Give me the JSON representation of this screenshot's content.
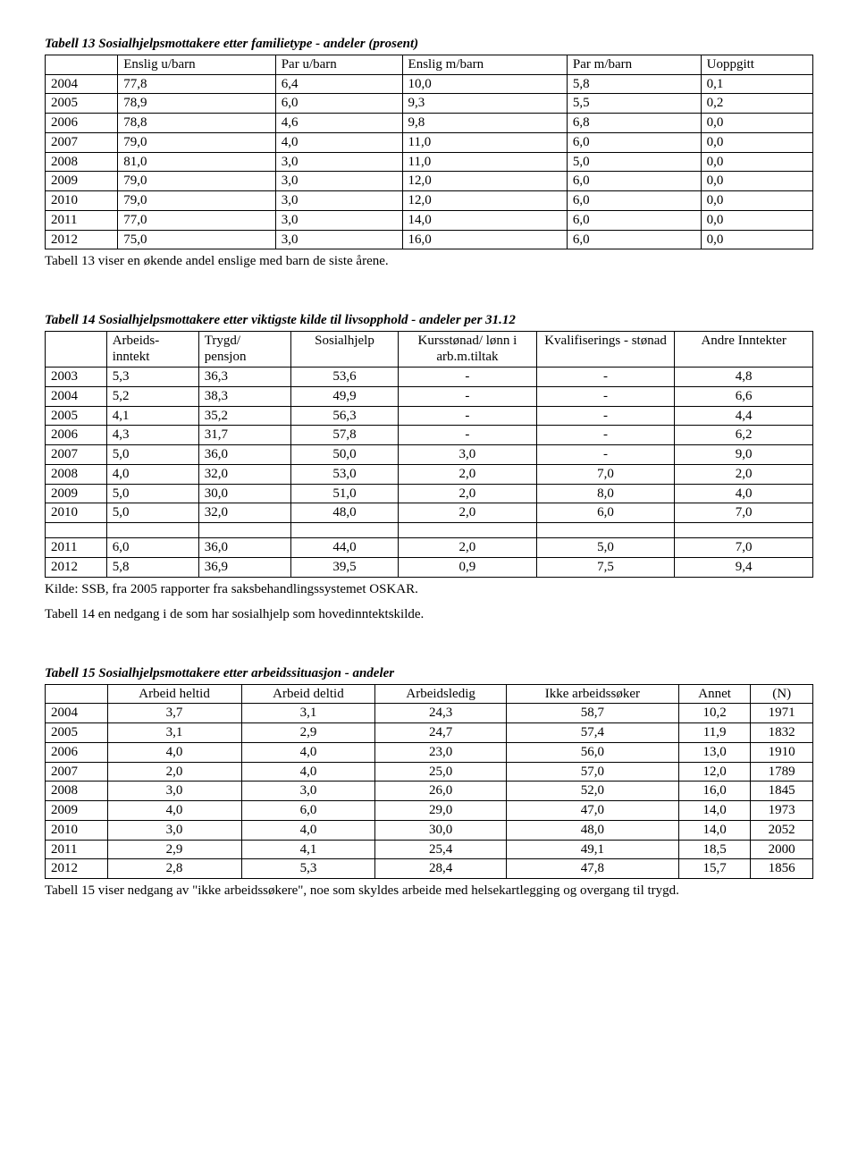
{
  "table13": {
    "title": "Tabell 13  Sosialhjelpsmottakere etter familietype - andeler (prosent)",
    "columns": [
      "",
      "Enslig u/barn",
      "Par u/barn",
      "Enslig m/barn",
      "Par m/barn",
      "Uoppgitt"
    ],
    "rows": [
      [
        "2004",
        "77,8",
        "6,4",
        "10,0",
        "5,8",
        "0,1"
      ],
      [
        "2005",
        "78,9",
        "6,0",
        "9,3",
        "5,5",
        "0,2"
      ],
      [
        "2006",
        "78,8",
        "4,6",
        "9,8",
        "6,8",
        "0,0"
      ],
      [
        "2007",
        "79,0",
        "4,0",
        "11,0",
        "6,0",
        "0,0"
      ],
      [
        "2008",
        "81,0",
        "3,0",
        "11,0",
        "5,0",
        "0,0"
      ],
      [
        "2009",
        "79,0",
        "3,0",
        "12,0",
        "6,0",
        "0,0"
      ],
      [
        "2010",
        "79,0",
        "3,0",
        "12,0",
        "6,0",
        "0,0"
      ],
      [
        "2011",
        "77,0",
        "3,0",
        "14,0",
        "6,0",
        "0,0"
      ],
      [
        "2012",
        "75,0",
        "3,0",
        "16,0",
        "6,0",
        "0,0"
      ]
    ],
    "caption": "Tabell 13 viser en økende andel enslige med barn de siste årene."
  },
  "table14": {
    "title": "Tabell 14 Sosialhjelpsmottakere etter viktigste kilde til livsopphold - andeler per 31.12",
    "columns": [
      "",
      "Arbeids-inntekt",
      "Trygd/ pensjon",
      "Sosialhjelp",
      "Kursstønad/ lønn i arb.m.tiltak",
      "Kvalifiserings - stønad",
      "Andre Inntekter"
    ],
    "rows": [
      [
        "2003",
        "5,3",
        "36,3",
        "53,6",
        "-",
        "-",
        "4,8"
      ],
      [
        "2004",
        "5,2",
        "38,3",
        "49,9",
        "-",
        "-",
        "6,6"
      ],
      [
        "2005",
        "4,1",
        "35,2",
        "56,3",
        "-",
        "-",
        "4,4"
      ],
      [
        "2006",
        "4,3",
        "31,7",
        "57,8",
        "-",
        "-",
        "6,2"
      ],
      [
        "2007",
        "5,0",
        "36,0",
        "50,0",
        "3,0",
        "-",
        "9,0"
      ],
      [
        "2008",
        "4,0",
        "32,0",
        "53,0",
        "2,0",
        "7,0",
        "2,0"
      ],
      [
        "2009",
        "5,0",
        "30,0",
        "51,0",
        "2,0",
        "8,0",
        "4,0"
      ],
      [
        "2010",
        "5,0",
        "32,0",
        "48,0",
        "2,0",
        "6,0",
        "7,0"
      ]
    ],
    "rows2": [
      [
        "2011",
        "6,0",
        "36,0",
        "44,0",
        "2,0",
        "5,0",
        "7,0"
      ],
      [
        "2012",
        "5,8",
        "36,9",
        "39,5",
        "0,9",
        "7,5",
        "9,4"
      ]
    ],
    "source": "Kilde: SSB, fra 2005 rapporter fra saksbehandlingssystemet OSKAR.",
    "caption": "Tabell 14 en nedgang i de som har sosialhjelp som hovedinntektskilde."
  },
  "table15": {
    "title": "Tabell 15  Sosialhjelpsmottakere etter arbeidssituasjon - andeler",
    "columns": [
      "",
      "Arbeid heltid",
      "Arbeid deltid",
      "Arbeidsledig",
      "Ikke arbeidssøker",
      "Annet",
      "(N)"
    ],
    "rows": [
      [
        "2004",
        "3,7",
        "3,1",
        "24,3",
        "58,7",
        "10,2",
        "1971"
      ],
      [
        "2005",
        "3,1",
        "2,9",
        "24,7",
        "57,4",
        "11,9",
        "1832"
      ],
      [
        "2006",
        "4,0",
        "4,0",
        "23,0",
        "56,0",
        "13,0",
        "1910"
      ],
      [
        "2007",
        "2,0",
        "4,0",
        "25,0",
        "57,0",
        "12,0",
        "1789"
      ],
      [
        "2008",
        "3,0",
        "3,0",
        "26,0",
        "52,0",
        "16,0",
        "1845"
      ],
      [
        "2009",
        "4,0",
        "6,0",
        "29,0",
        "47,0",
        "14,0",
        "1973"
      ],
      [
        "2010",
        "3,0",
        "4,0",
        "30,0",
        "48,0",
        "14,0",
        "2052"
      ],
      [
        "2011",
        "2,9",
        "4,1",
        "25,4",
        "49,1",
        "18,5",
        "2000"
      ],
      [
        "2012",
        "2,8",
        "5,3",
        "28,4",
        "47,8",
        "15,7",
        "1856"
      ]
    ],
    "caption": "Tabell 15 viser nedgang av \"ikke arbeidssøkere\", noe som skyldes arbeide med helsekartlegging og overgang til trygd."
  }
}
